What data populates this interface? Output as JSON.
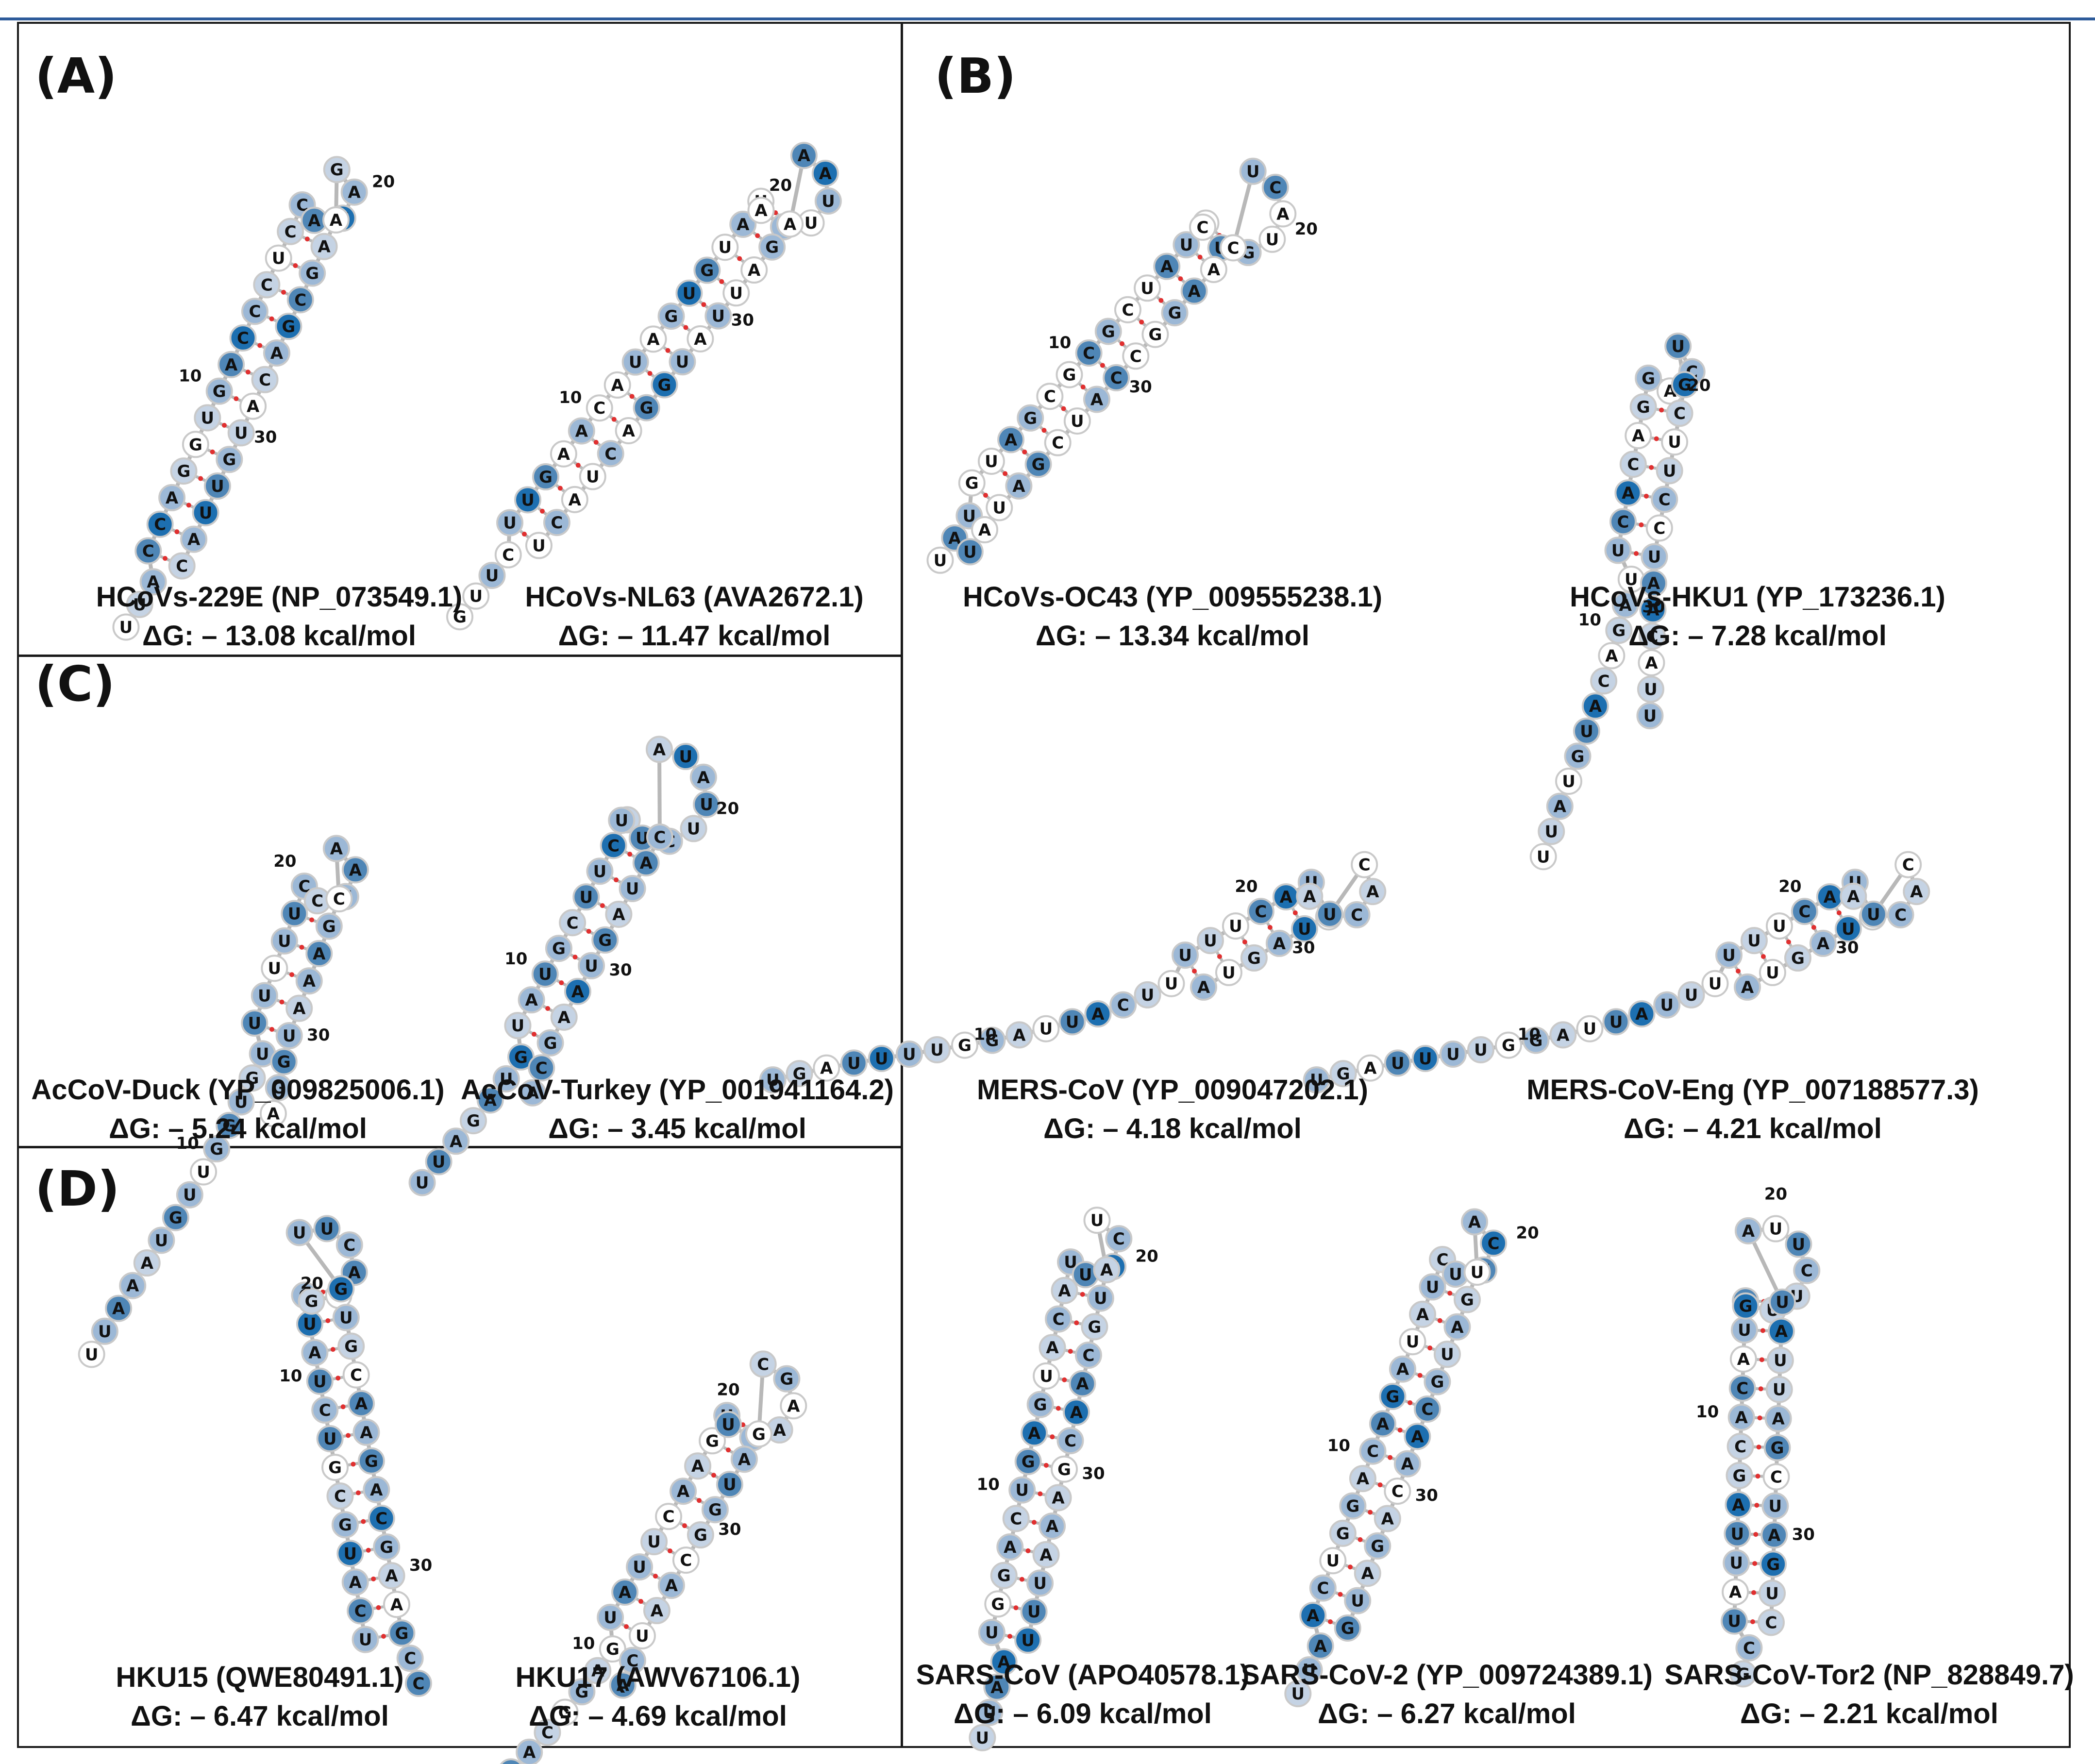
{
  "panels": {
    "a": "(A)",
    "b": "(B)",
    "c": "(C)",
    "d": "(D)"
  },
  "structures": [
    {
      "name": "HCoVs-229E (NP_073549.1)",
      "energy": "ΔG: – 13.08 kcal/mol",
      "sequence": "UUACCAGGUGACCCUCCAUAGAAGCGACAUG",
      "ticks": [
        "10",
        "20",
        "30"
      ]
    },
    {
      "name": "HCoVs-NL63 (AVA2672.1)",
      "energy": "ΔG: – 11.47 kcal/mol",
      "sequence": "GUUCUUGAACAUAGUGUAUAGUUAAAGAUUAUGGACUACU",
      "ticks": [
        "10",
        "20",
        "30"
      ]
    },
    {
      "name": "HCoVs-OC43 (YP_009555238.1)",
      "energy": "ΔG: – 13.34 kcal/mol",
      "sequence": "UAUGUAGCGCGCUAUUCUGUACUCAAGGCCAUCGA",
      "ticks": [
        "10",
        "20",
        "30"
      ]
    },
    {
      "name": "HCoVs-HKU1 (YP_173236.1)",
      "energy": "ΔG: – 7.28 kcal/mol",
      "sequence": "UUAUGUACAGAUUCACAGGACUGCUUCCUAACA",
      "ticks": [
        "10",
        "20",
        "30"
      ]
    },
    {
      "name": "AcCoV-Duck (YP_009825006.1)",
      "energy": "ΔG: – 5.24 kcal/mol",
      "sequence": "UUAAAUGUUGGUGUUUUUUCCUAACGAAAUGGAACA",
      "ticks": [
        "10",
        "20",
        "30"
      ]
    },
    {
      "name": "AcCoV-Turkey (YP_001941164.2)",
      "energy": "ΔG: – 3.45 kcal/mol",
      "sequence": "UUAGAUGUAUGCUUCAUUCUUAUACAUAGUAAGCA",
      "ticks": [
        "10",
        "20",
        "30"
      ]
    },
    {
      "name": "MERS-CoV (YP_009047202.1)",
      "energy": "ΔG: – 4.18 kcal/mol",
      "sequence": "UGAUUUUGGAUUACUUUUUCAUACCACUUAGUAUGA",
      "ticks": [
        "10",
        "20",
        "30"
      ]
    },
    {
      "name": "MERS-CoV-Eng (YP_007188577.3)",
      "energy": "ΔG: – 4.21 kcal/mol",
      "sequence": "UGAUUUUGGAUUAUUUUUUCAUACCACUUAGUAUGA",
      "ticks": [
        "10",
        "20",
        "30"
      ]
    },
    {
      "name": "HKU15 (QWE80491.1)",
      "energy": "ΔG: – 6.47 kcal/mol",
      "sequence": "UCAUGCGUCUAUCGUACUUGUGCAAGACGAAGCC",
      "ticks": [
        "10",
        "20",
        "30"
      ]
    },
    {
      "name": "HKU17 (AWV67106.1)",
      "energy": "ΔG: – 4.69 kcal/mol",
      "sequence": "UCAGACGGAGUAUUCAAGUUCAAGCGAUGGCAA",
      "ticks": [
        "10",
        "20",
        "30"
      ]
    },
    {
      "name": "SARS-CoV (APO40578.1)",
      "energy": "ΔG: – 6.09 kcal/mol",
      "sequence": "UUAAUGGACUGAGUACAUUCCUAUGCAACGAAAU",
      "ticks": [
        "10",
        "20",
        "30"
      ]
    },
    {
      "name": "SARS-CoV-2 (YP_009724389.1)",
      "energy": "ΔG: – 6.27 kcal/mol",
      "sequence": "UUAACUGGACAGAUAUCUUCAUGAUGCAACAGAUG",
      "ticks": [
        "10",
        "20",
        "30"
      ]
    },
    {
      "name": "SARS-CoV-Tor2 (NP_828849.7)",
      "energy": "ΔG: – 2.21 kcal/mol",
      "sequence": "GCUAUUAGCACAUAGUUCUUAUAUUAGCUAGUCAU",
      "ticks": [
        "10",
        "20",
        "30"
      ]
    }
  ],
  "colors": {
    "frame": "#1a1a1a",
    "top_rule": "#2e5b9a",
    "node_unpaired": "#ffffff",
    "node_light": "#c5d3e4",
    "node_mid": "#9cb8d6",
    "node_dark": "#4f86b6",
    "node_darkest": "#1d6fb0",
    "backbone": "#b8b8b8",
    "pair_mark": "#e03030"
  }
}
